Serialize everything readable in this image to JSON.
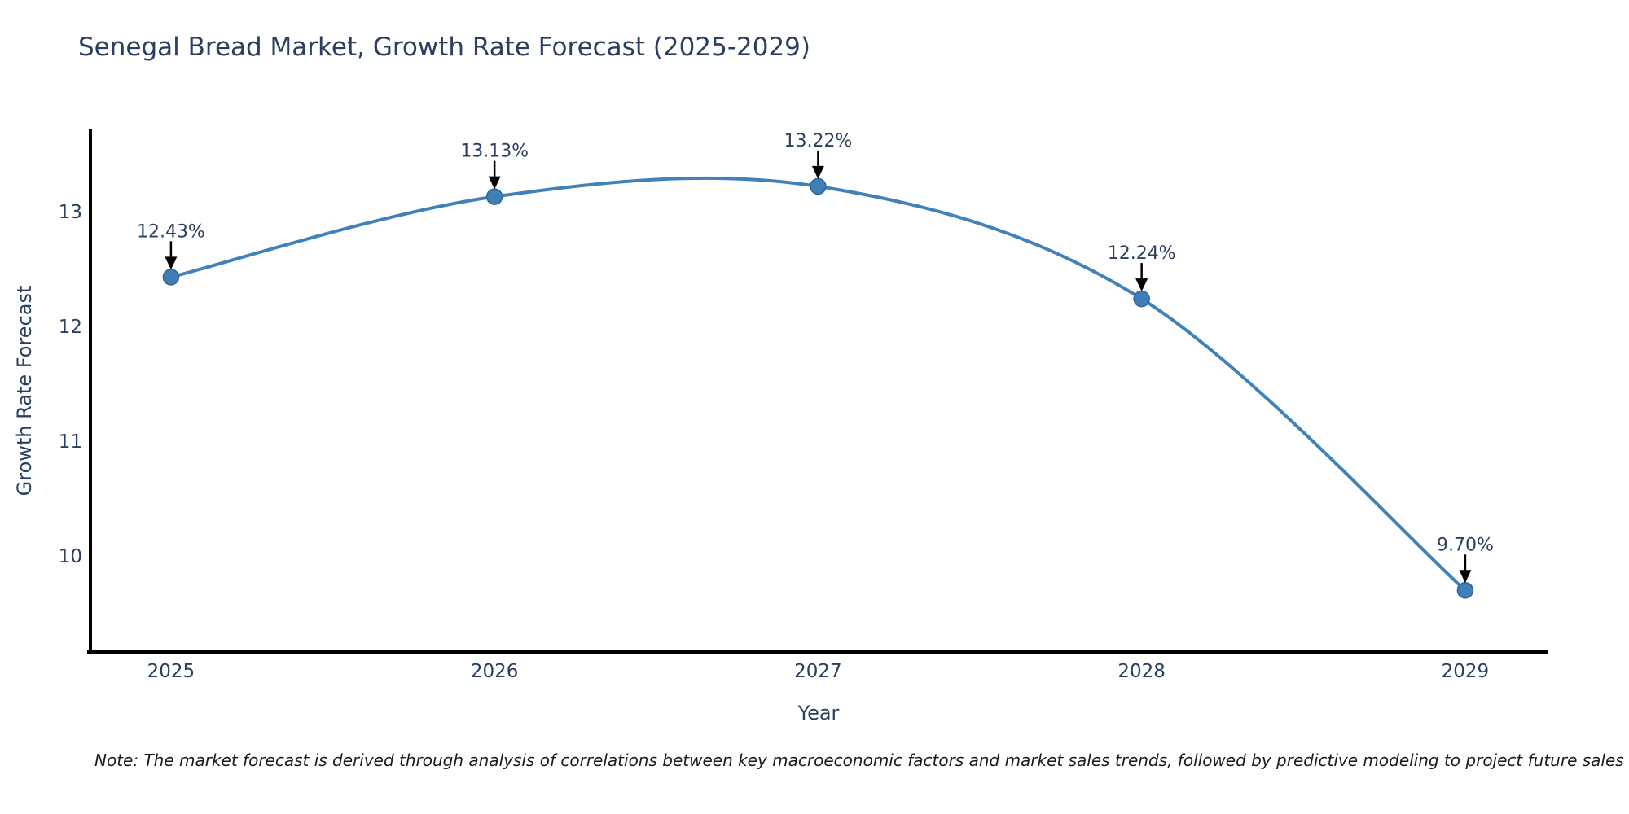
{
  "chart_data": {
    "type": "line",
    "title": "Senegal Bread Market, Growth Rate Forecast (2025-2029)",
    "xlabel": "Year",
    "ylabel": "Growth Rate Forecast",
    "x": [
      2025,
      2026,
      2027,
      2028,
      2029
    ],
    "values": [
      12.43,
      13.13,
      13.22,
      12.24,
      9.7
    ],
    "point_labels": [
      "12.43%",
      "13.13%",
      "13.22%",
      "12.24%",
      "9.70%"
    ],
    "xtick_labels": [
      "2025",
      "2026",
      "2027",
      "2028",
      "2029"
    ],
    "ytick_values": [
      10,
      11,
      12,
      13
    ],
    "ytick_labels": [
      "10",
      "11",
      "12",
      "13"
    ],
    "xlim": [
      2024.746,
      2029.257
    ],
    "ylim": [
      9.163,
      13.723
    ],
    "line_shape": "spline",
    "grid": false,
    "legend": false,
    "line_color": "#4181ba",
    "marker_color": "#3f7fb5",
    "marker_edge_color": "#2e6496",
    "arrow_color": "#000000",
    "axis_color": "#000000",
    "text_color": "#2a3f5f",
    "note": "Note: The market forecast is derived through analysis of correlations between key macroeconomic factors and market sales trends, followed by predictive modeling to project future sales"
  }
}
